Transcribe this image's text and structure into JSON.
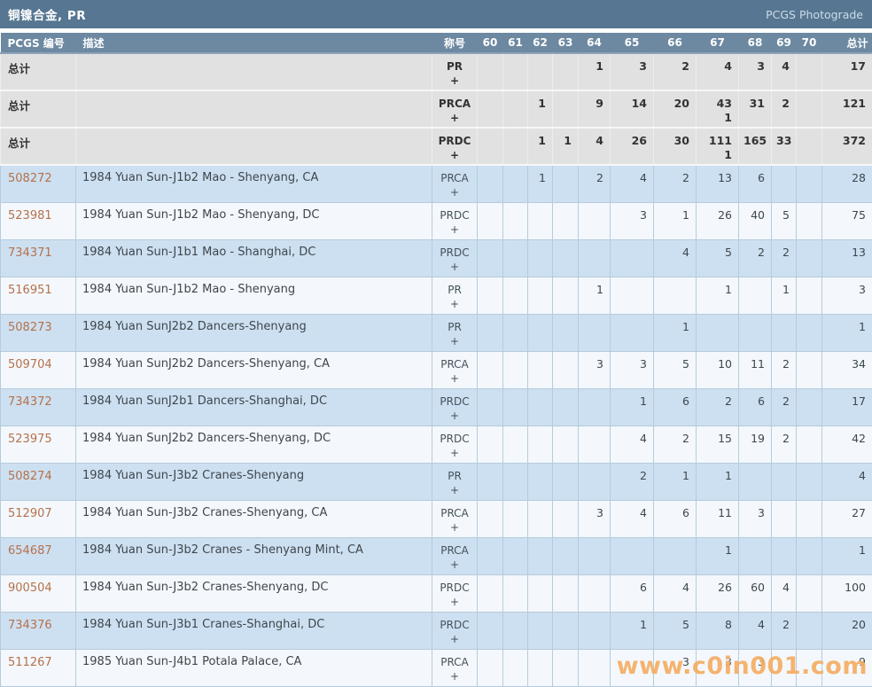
{
  "title_bar": {
    "title": "铜镍合金, PR",
    "link": "PCGS Photograde"
  },
  "colors": {
    "title_bar_bg": "#567691",
    "header_bg": "#6d89a1",
    "summary_row_bg": "#e1e1e1",
    "row_blue_bg": "#cde0f1",
    "row_white_bg": "#f4f8fc",
    "grid_line": "#b6cbdd",
    "pcgs_link": "#b5714b",
    "watermark": "#f3a04a"
  },
  "table": {
    "headers": {
      "pcgs_number": "PCGS 编号",
      "description": "描述",
      "designation": "称号",
      "grades": [
        "60",
        "61",
        "62",
        "63",
        "64",
        "65",
        "66",
        "67",
        "68",
        "69",
        "70"
      ],
      "total": "总计"
    },
    "summary_rows": [
      {
        "label": "总计",
        "designation": "PR",
        "plus": "+",
        "grades": [
          "",
          "",
          "",
          "",
          "1",
          "3",
          "2",
          "4",
          "3",
          "4",
          ""
        ],
        "grade_sub": [
          "",
          "",
          "",
          "",
          "",
          "",
          "",
          "",
          "",
          "",
          ""
        ],
        "total": "17"
      },
      {
        "label": "总计",
        "designation": "PRCA",
        "plus": "+",
        "grades": [
          "",
          "",
          "1",
          "",
          "9",
          "14",
          "20",
          "43",
          "31",
          "2",
          ""
        ],
        "grade_sub": [
          "",
          "",
          "",
          "",
          "",
          "",
          "",
          "1",
          "",
          "",
          ""
        ],
        "total": "121"
      },
      {
        "label": "总计",
        "designation": "PRDC",
        "plus": "+",
        "grades": [
          "",
          "",
          "1",
          "1",
          "4",
          "26",
          "30",
          "111",
          "165",
          "33",
          ""
        ],
        "grade_sub": [
          "",
          "",
          "",
          "",
          "",
          "",
          "",
          "1",
          "",
          "",
          ""
        ],
        "total": "372"
      }
    ],
    "rows": [
      {
        "pcgs": "508272",
        "desc": "1984 Yuan Sun-J1b2 Mao - Shenyang, CA",
        "designation": "PRCA",
        "plus": "+",
        "grades": [
          "",
          "",
          "1",
          "",
          "2",
          "4",
          "2",
          "13",
          "6",
          "",
          ""
        ],
        "total": "28"
      },
      {
        "pcgs": "523981",
        "desc": "1984 Yuan Sun-J1b2 Mao - Shenyang, DC",
        "designation": "PRDC",
        "plus": "+",
        "grades": [
          "",
          "",
          "",
          "",
          "",
          "3",
          "1",
          "26",
          "40",
          "5",
          ""
        ],
        "total": "75"
      },
      {
        "pcgs": "734371",
        "desc": "1984 Yuan Sun-J1b1 Mao - Shanghai, DC",
        "designation": "PRDC",
        "plus": "+",
        "grades": [
          "",
          "",
          "",
          "",
          "",
          "",
          "4",
          "5",
          "2",
          "2",
          ""
        ],
        "total": "13"
      },
      {
        "pcgs": "516951",
        "desc": "1984 Yuan Sun-J1b2 Mao - Shenyang",
        "designation": "PR",
        "plus": "+",
        "grades": [
          "",
          "",
          "",
          "",
          "1",
          "",
          "",
          "1",
          "",
          "1",
          ""
        ],
        "total": "3"
      },
      {
        "pcgs": "508273",
        "desc": "1984 Yuan SunJ2b2 Dancers-Shenyang",
        "designation": "PR",
        "plus": "+",
        "grades": [
          "",
          "",
          "",
          "",
          "",
          "",
          "1",
          "",
          "",
          "",
          ""
        ],
        "total": "1"
      },
      {
        "pcgs": "509704",
        "desc": "1984 Yuan SunJ2b2 Dancers-Shenyang, CA",
        "designation": "PRCA",
        "plus": "+",
        "grades": [
          "",
          "",
          "",
          "",
          "3",
          "3",
          "5",
          "10",
          "11",
          "2",
          ""
        ],
        "total": "34"
      },
      {
        "pcgs": "734372",
        "desc": "1984 Yuan SunJ2b1 Dancers-Shanghai, DC",
        "designation": "PRDC",
        "plus": "+",
        "grades": [
          "",
          "",
          "",
          "",
          "",
          "1",
          "6",
          "2",
          "6",
          "2",
          ""
        ],
        "total": "17"
      },
      {
        "pcgs": "523975",
        "desc": "1984 Yuan SunJ2b2 Dancers-Shenyang, DC",
        "designation": "PRDC",
        "plus": "+",
        "grades": [
          "",
          "",
          "",
          "",
          "",
          "4",
          "2",
          "15",
          "19",
          "2",
          ""
        ],
        "total": "42"
      },
      {
        "pcgs": "508274",
        "desc": "1984 Yuan Sun-J3b2 Cranes-Shenyang",
        "designation": "PR",
        "plus": "+",
        "grades": [
          "",
          "",
          "",
          "",
          "",
          "2",
          "1",
          "1",
          "",
          "",
          ""
        ],
        "total": "4"
      },
      {
        "pcgs": "512907",
        "desc": "1984 Yuan Sun-J3b2 Cranes-Shenyang, CA",
        "designation": "PRCA",
        "plus": "+",
        "grades": [
          "",
          "",
          "",
          "",
          "3",
          "4",
          "6",
          "11",
          "3",
          "",
          ""
        ],
        "total": "27"
      },
      {
        "pcgs": "654687",
        "desc": "1984 Yuan Sun-J3b2 Cranes - Shenyang Mint, CA",
        "designation": "PRCA",
        "plus": "+",
        "grades": [
          "",
          "",
          "",
          "",
          "",
          "",
          "",
          "1",
          "",
          "",
          ""
        ],
        "total": "1"
      },
      {
        "pcgs": "900504",
        "desc": "1984 Yuan Sun-J3b2 Cranes-Shenyang, DC",
        "designation": "PRDC",
        "plus": "+",
        "grades": [
          "",
          "",
          "",
          "",
          "",
          "6",
          "4",
          "26",
          "60",
          "4",
          ""
        ],
        "total": "100"
      },
      {
        "pcgs": "734376",
        "desc": "1984 Yuan Sun-J3b1 Cranes-Shanghai, DC",
        "designation": "PRDC",
        "plus": "+",
        "grades": [
          "",
          "",
          "",
          "",
          "",
          "1",
          "5",
          "8",
          "4",
          "2",
          ""
        ],
        "total": "20"
      },
      {
        "pcgs": "511267",
        "desc": "1985 Yuan Sun-J4b1 Potala Palace, CA",
        "designation": "PRCA",
        "plus": "+",
        "grades": [
          "",
          "",
          "",
          "",
          "",
          "",
          "3",
          "3",
          "3",
          "",
          ""
        ],
        "total": "9"
      }
    ]
  },
  "watermark": "www.c0in001.com"
}
